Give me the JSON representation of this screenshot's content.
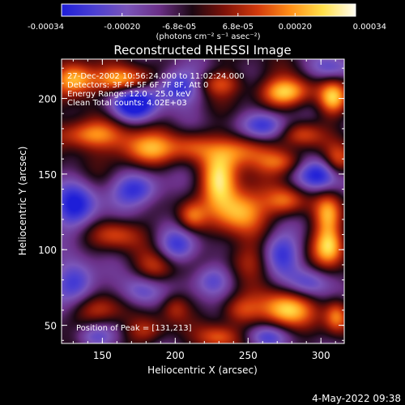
{
  "chart_data": {
    "type": "heatmap",
    "title": "Reconstructed RHESSI Image",
    "xlabel": "Heliocentric X (arcsec)",
    "ylabel": "Heliocentric Y (arcsec)",
    "xlim": [
      122,
      316
    ],
    "ylim": [
      38,
      226
    ],
    "x_ticks": [
      150,
      200,
      250,
      300
    ],
    "y_ticks": [
      50,
      100,
      150,
      200
    ],
    "x_tick_labels": [
      "150",
      "200",
      "250",
      "300"
    ],
    "y_tick_labels": [
      "50",
      "100",
      "150",
      "200"
    ],
    "colorbar": {
      "range": [
        -0.00034,
        0.00034
      ],
      "ticks": [
        -0.00034,
        -0.0002,
        -6.8e-05,
        6.8e-05,
        0.0002,
        0.00034
      ],
      "tick_labels": [
        "-0.00034",
        "-0.00020",
        "-6.8e-05",
        "6.8e-05",
        "0.00020",
        "0.00034"
      ],
      "unit_label": "(photons cm⁻² s⁻¹ asec⁻²)",
      "colors": [
        "#1e1ed8",
        "#4b3fd2",
        "#7a55ba",
        "#6a2f86",
        "#1b0712",
        "#7f1208",
        "#d33a0c",
        "#ff8f17",
        "#ffe04a",
        "#fffdf2"
      ]
    },
    "annotations": [
      "27-Dec-2002 10:56:24.000 to 11:02:24.000",
      "Detectors: 3F 4F 5F 6F 7F 8F, Att 0",
      "Energy Range: 12.0 - 25.0 keV",
      "Clean     Total counts: 4.02E+03"
    ],
    "peak_label": "Position of Peak = [131,213]",
    "peak": {
      "x": 131,
      "y": 213
    },
    "blobs": [
      {
        "x": 131,
        "y": 213,
        "value": 1.0,
        "sx": 10,
        "sy": 8
      },
      {
        "x": 164,
        "y": 212,
        "value": 0.9,
        "sx": 14,
        "sy": 6
      },
      {
        "x": 230,
        "y": 210,
        "value": 0.55,
        "sx": 12,
        "sy": 6
      },
      {
        "x": 276,
        "y": 204,
        "value": 1.0,
        "sx": 13,
        "sy": 7
      },
      {
        "x": 308,
        "y": 200,
        "value": 0.85,
        "sx": 7,
        "sy": 8
      },
      {
        "x": 287,
        "y": 176,
        "value": 0.55,
        "sx": 10,
        "sy": 6
      },
      {
        "x": 140,
        "y": 176,
        "value": 0.8,
        "sx": 18,
        "sy": 7
      },
      {
        "x": 180,
        "y": 166,
        "value": 0.85,
        "sx": 15,
        "sy": 8
      },
      {
        "x": 212,
        "y": 168,
        "value": 0.45,
        "sx": 10,
        "sy": 7
      },
      {
        "x": 246,
        "y": 166,
        "value": 0.75,
        "sx": 14,
        "sy": 8
      },
      {
        "x": 274,
        "y": 158,
        "value": 0.6,
        "sx": 12,
        "sy": 6
      },
      {
        "x": 312,
        "y": 158,
        "value": 0.65,
        "sx": 7,
        "sy": 8
      },
      {
        "x": 230,
        "y": 145,
        "value": 1.0,
        "sx": 9,
        "sy": 12
      },
      {
        "x": 245,
        "y": 126,
        "value": 0.95,
        "sx": 12,
        "sy": 11
      },
      {
        "x": 211,
        "y": 122,
        "value": 0.6,
        "sx": 7,
        "sy": 7
      },
      {
        "x": 276,
        "y": 132,
        "value": 0.7,
        "sx": 10,
        "sy": 7
      },
      {
        "x": 305,
        "y": 123,
        "value": 0.75,
        "sx": 7,
        "sy": 10
      },
      {
        "x": 160,
        "y": 110,
        "value": 0.55,
        "sx": 12,
        "sy": 7
      },
      {
        "x": 306,
        "y": 102,
        "value": 0.95,
        "sx": 8,
        "sy": 9
      },
      {
        "x": 250,
        "y": 92,
        "value": 0.5,
        "sx": 12,
        "sy": 9
      },
      {
        "x": 187,
        "y": 88,
        "value": 0.5,
        "sx": 10,
        "sy": 8
      },
      {
        "x": 276,
        "y": 60,
        "value": 1.0,
        "sx": 12,
        "sy": 9
      },
      {
        "x": 244,
        "y": 60,
        "value": 0.55,
        "sx": 10,
        "sy": 7
      },
      {
        "x": 200,
        "y": 62,
        "value": 0.45,
        "sx": 7,
        "sy": 7
      },
      {
        "x": 311,
        "y": 56,
        "value": 0.75,
        "sx": 6,
        "sy": 8
      },
      {
        "x": 148,
        "y": 60,
        "value": 0.55,
        "sx": 12,
        "sy": 7
      },
      {
        "x": 180,
        "y": 46,
        "value": 0.45,
        "sx": 10,
        "sy": 6
      },
      {
        "x": 230,
        "y": 42,
        "value": 0.6,
        "sx": 10,
        "sy": 6
      },
      {
        "x": 171,
        "y": 196,
        "value": -0.95,
        "sx": 12,
        "sy": 8
      },
      {
        "x": 202,
        "y": 208,
        "value": -0.85,
        "sx": 12,
        "sy": 8
      },
      {
        "x": 307,
        "y": 220,
        "value": -0.55,
        "sx": 11,
        "sy": 6
      },
      {
        "x": 299,
        "y": 149,
        "value": -0.9,
        "sx": 11,
        "sy": 8
      },
      {
        "x": 262,
        "y": 182,
        "value": -0.85,
        "sx": 11,
        "sy": 7
      },
      {
        "x": 132,
        "y": 128,
        "value": -0.85,
        "sx": 11,
        "sy": 11
      },
      {
        "x": 174,
        "y": 140,
        "value": -0.8,
        "sx": 12,
        "sy": 8
      },
      {
        "x": 201,
        "y": 102,
        "value": -0.6,
        "sx": 10,
        "sy": 8
      },
      {
        "x": 272,
        "y": 98,
        "value": -0.75,
        "sx": 10,
        "sy": 10
      },
      {
        "x": 132,
        "y": 78,
        "value": -0.8,
        "sx": 10,
        "sy": 10
      },
      {
        "x": 177,
        "y": 72,
        "value": -0.6,
        "sx": 10,
        "sy": 8
      },
      {
        "x": 225,
        "y": 80,
        "value": -0.65,
        "sx": 10,
        "sy": 8
      },
      {
        "x": 292,
        "y": 78,
        "value": -0.55,
        "sx": 10,
        "sy": 7
      },
      {
        "x": 144,
        "y": 42,
        "value": -0.5,
        "sx": 10,
        "sy": 6
      },
      {
        "x": 262,
        "y": 42,
        "value": -0.6,
        "sx": 10,
        "sy": 6
      }
    ]
  },
  "footer": {
    "timestamp": "4-May-2022 09:38"
  }
}
